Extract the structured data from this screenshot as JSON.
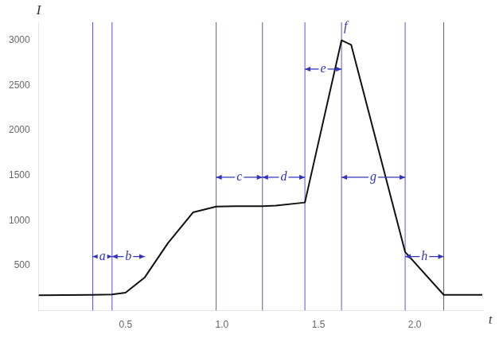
{
  "chart_data": {
    "type": "line",
    "xlabel": "t",
    "ylabel": "I",
    "x": [
      0.05,
      0.33,
      0.43,
      0.5,
      0.6,
      0.72,
      0.85,
      0.97,
      1.07,
      1.21,
      1.28,
      1.43,
      1.62,
      1.67,
      1.95,
      2.15,
      2.35
    ],
    "values": [
      170,
      175,
      180,
      200,
      370,
      750,
      1090,
      1155,
      1160,
      1160,
      1165,
      1200,
      3000,
      2950,
      650,
      175,
      175
    ],
    "color": "#111111",
    "xlim": [
      0.05,
      2.35
    ],
    "ylim": [
      0,
      3200
    ],
    "xticks": [
      0.5,
      {
        "value": 1.0,
        "label": "1.0"
      },
      1.5,
      {
        "value": 2.0,
        "label": "2.0"
      }
    ],
    "yticks": [
      500,
      1000,
      1500,
      2000,
      2500,
      3000
    ],
    "grid": false,
    "vlines": {
      "x": [
        0.33,
        0.43,
        0.97,
        1.21,
        1.43,
        1.62,
        1.95,
        2.15
      ],
      "color": "#5555dd"
    },
    "annotations": {
      "color": "#3333bb",
      "items": [
        {
          "text": "a",
          "x1": 0.33,
          "x2": 0.43,
          "y": 600
        },
        {
          "text": "b",
          "x1": 0.43,
          "x2": 0.6,
          "y": 600
        },
        {
          "text": "c",
          "x1": 0.97,
          "x2": 1.21,
          "y": 1480
        },
        {
          "text": "d",
          "x1": 1.21,
          "x2": 1.43,
          "y": 1480
        },
        {
          "text": "e",
          "x1": 1.43,
          "x2": 1.62,
          "y": 2680
        },
        {
          "text": "f",
          "x": 1.62,
          "y": 3080
        },
        {
          "text": "g",
          "x1": 1.62,
          "x2": 1.95,
          "y": 1480
        },
        {
          "text": "h",
          "x1": 1.95,
          "x2": 2.15,
          "y": 600
        }
      ]
    }
  }
}
